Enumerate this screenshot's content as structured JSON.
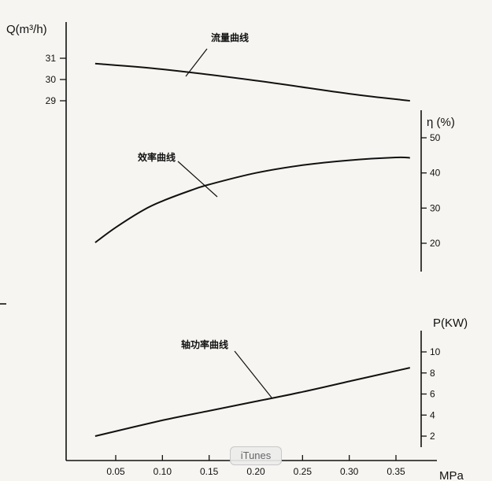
{
  "chart_data": {
    "type": "line",
    "x": {
      "label": "MPa",
      "ticks": [
        0.05,
        0.1,
        0.15,
        0.2,
        0.25,
        0.3,
        0.35
      ],
      "tick_labels": [
        "0.05",
        "0.10",
        "0.15",
        "0.20",
        "0.25",
        "0.30",
        "0.35"
      ],
      "range": [
        0.028,
        0.366
      ]
    },
    "axes": {
      "flow": {
        "label": "Q(m³/h)",
        "ticks": [
          29,
          30,
          31
        ],
        "tick_labels": [
          "29",
          "30",
          "31"
        ],
        "range": [
          29,
          31
        ]
      },
      "efficiency": {
        "label": "η (%)",
        "ticks": [
          20,
          30,
          40,
          50
        ],
        "tick_labels": [
          "20",
          "30",
          "40",
          "50"
        ],
        "range": [
          20,
          50
        ]
      },
      "power": {
        "label": "P(KW)",
        "ticks": [
          2,
          4,
          6,
          8,
          10
        ],
        "tick_labels": [
          "2",
          "4",
          "6",
          "8",
          "10"
        ],
        "range": [
          2,
          10
        ]
      }
    },
    "series": [
      {
        "name": "流量曲线",
        "axis": "flow",
        "points": [
          [
            0.028,
            30.75
          ],
          [
            0.1,
            30.48
          ],
          [
            0.2,
            29.95
          ],
          [
            0.3,
            29.33
          ],
          [
            0.365,
            29.0
          ]
        ]
      },
      {
        "name": "效率曲线",
        "axis": "efficiency",
        "points": [
          [
            0.028,
            20.2
          ],
          [
            0.05,
            24.5
          ],
          [
            0.08,
            29.5
          ],
          [
            0.1,
            32.0
          ],
          [
            0.13,
            35.0
          ],
          [
            0.15,
            36.7
          ],
          [
            0.2,
            40.0
          ],
          [
            0.25,
            42.2
          ],
          [
            0.3,
            43.6
          ],
          [
            0.35,
            44.4
          ],
          [
            0.365,
            44.3
          ]
        ]
      },
      {
        "name": "轴功率曲线",
        "axis": "power",
        "points": [
          [
            0.028,
            2.0
          ],
          [
            0.1,
            3.5
          ],
          [
            0.15,
            4.4
          ],
          [
            0.2,
            5.3
          ],
          [
            0.25,
            6.2
          ],
          [
            0.3,
            7.2
          ],
          [
            0.365,
            8.5
          ]
        ]
      }
    ]
  },
  "overlay": {
    "badge_label": "iTunes"
  }
}
